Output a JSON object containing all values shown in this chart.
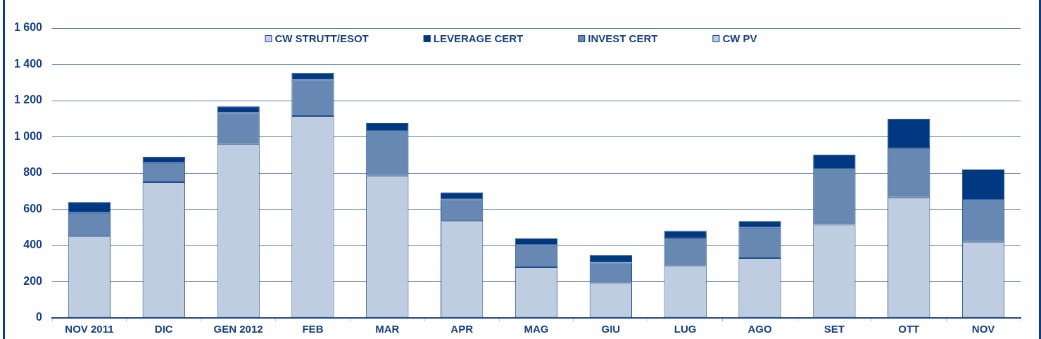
{
  "chart_data": {
    "type": "bar",
    "stacked": true,
    "categories": [
      "NOV 2011",
      "DIC",
      "GEN 2012",
      "FEB",
      "MAR",
      "APR",
      "MAG",
      "GIU",
      "LUG",
      "AGO",
      "SET",
      "OTT",
      "NOV"
    ],
    "series": [
      {
        "name": "CW PV",
        "color": "#bfcde0",
        "values": [
          450,
          750,
          960,
          1115,
          785,
          535,
          280,
          195,
          285,
          330,
          515,
          665,
          420
        ]
      },
      {
        "name": "INVEST CERT",
        "color": "#6688b3",
        "values": [
          130,
          105,
          172,
          200,
          245,
          120,
          123,
          110,
          158,
          168,
          305,
          275,
          230
        ]
      },
      {
        "name": "LEVERAGE CERT",
        "color": "#003882",
        "values": [
          60,
          35,
          36,
          37,
          46,
          38,
          37,
          41,
          38,
          37,
          82,
          160,
          169
        ]
      },
      {
        "name": "CW STRUTT/ESOT",
        "color": "#ccccff",
        "values": [
          0,
          0,
          0,
          0,
          0,
          0,
          0,
          0,
          0,
          0,
          0,
          0,
          0
        ]
      }
    ],
    "ylim": [
      0,
      1600
    ],
    "yticks": [
      0,
      200,
      400,
      600,
      800,
      {
        "value": 1000,
        "label": "1 000"
      },
      {
        "value": 1200,
        "label": "1 200"
      },
      {
        "value": 1400,
        "label": "1 400"
      },
      {
        "value": 1600,
        "label": "1 600"
      }
    ],
    "grid": "y",
    "legend": "top"
  }
}
